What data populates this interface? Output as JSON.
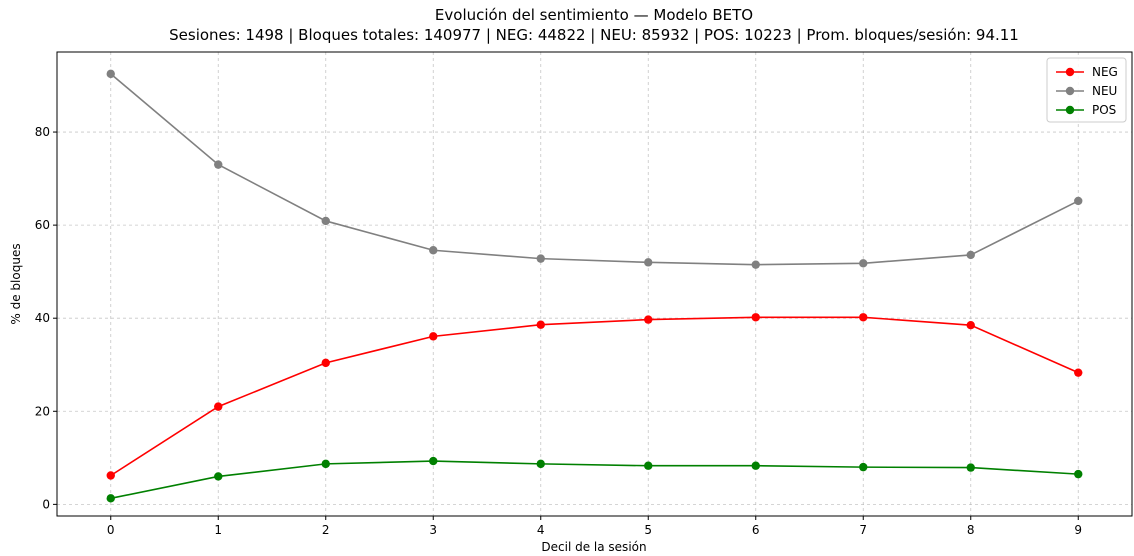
{
  "chart_data": {
    "type": "line",
    "title": "Evolución del sentimiento — Modelo BETO",
    "subtitle": "Sesiones: 1498 | Bloques totales: 140977 | NEG: 44822 | NEU: 85932 | POS: 10223 | Prom. bloques/sesión: 94.11",
    "xlabel": "Decil de la sesión",
    "ylabel": "% de bloques",
    "x": [
      0,
      1,
      2,
      3,
      4,
      5,
      6,
      7,
      8,
      9
    ],
    "xticks": [
      "0",
      "1",
      "2",
      "3",
      "4",
      "5",
      "6",
      "7",
      "8",
      "9"
    ],
    "yticks": [
      "0",
      "20",
      "40",
      "60",
      "80"
    ],
    "xlim": [
      -0.5,
      9.5
    ],
    "ylim": [
      -2.5,
      97.2
    ],
    "grid": true,
    "legend_position": "top-right",
    "series": [
      {
        "name": "NEG",
        "color": "#ff0000",
        "values": [
          6.2,
          21.0,
          30.4,
          36.1,
          38.6,
          39.7,
          40.2,
          40.2,
          38.5,
          28.3
        ]
      },
      {
        "name": "NEU",
        "color": "#808080",
        "values": [
          92.5,
          73.0,
          60.9,
          54.6,
          52.8,
          52.0,
          51.5,
          51.8,
          53.6,
          65.2
        ]
      },
      {
        "name": "POS",
        "color": "#008000",
        "values": [
          1.3,
          6.0,
          8.7,
          9.3,
          8.7,
          8.3,
          8.3,
          8.0,
          7.9,
          6.5
        ]
      }
    ]
  }
}
